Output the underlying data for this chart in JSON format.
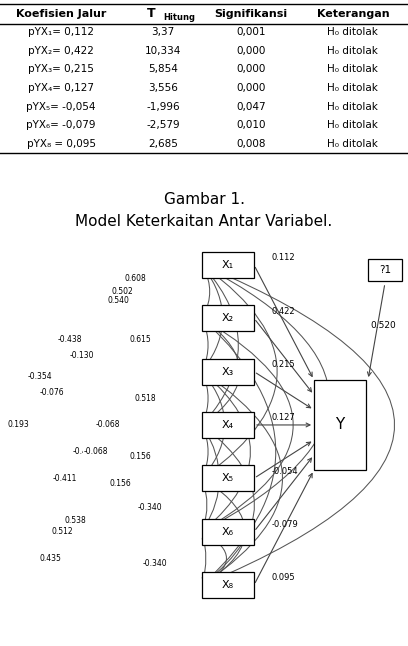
{
  "title_line1": "Gambar 1.",
  "title_line2": "Model Keterkaitan Antar Variabel.",
  "table_headers": [
    "Koefisien Jalur",
    "T  Hitung",
    "Signifikansi",
    "Keterangan"
  ],
  "table_rows": [
    [
      "pYX₁= 0,112",
      "3,37",
      "0,001",
      "H₀ ditolak"
    ],
    [
      "pYX₂= 0,422",
      "10,334",
      "0,000",
      "H₀ ditolak"
    ],
    [
      "pYX₃= 0,215",
      "5,854",
      "0,000",
      "H₀ ditolak"
    ],
    [
      "pYX₄= 0,127",
      "3,556",
      "0,000",
      "H₀ ditolak"
    ],
    [
      "pYX₅= -0,054",
      "-1,996",
      "0,047",
      "H₀ ditolak"
    ],
    [
      "pYX₆= -0,079",
      "-2,579",
      "0,010",
      "H₀ ditolak"
    ],
    [
      "pYX₈ = 0,095",
      "2,685",
      "0,008",
      "H₀ ditolak"
    ]
  ],
  "x_nodes": [
    "X₁",
    "X₂",
    "X₃",
    "X₄",
    "X₅",
    "X₆",
    "X₈"
  ],
  "y_node": "Y",
  "epsilon_node": "?1",
  "path_coefficients": [
    "0.112",
    "0.422",
    "0.215",
    "0.127",
    "-0.054",
    "-0.079",
    "0.095"
  ],
  "epsilon_to_y": "0.520",
  "bg_color": "#ffffff"
}
